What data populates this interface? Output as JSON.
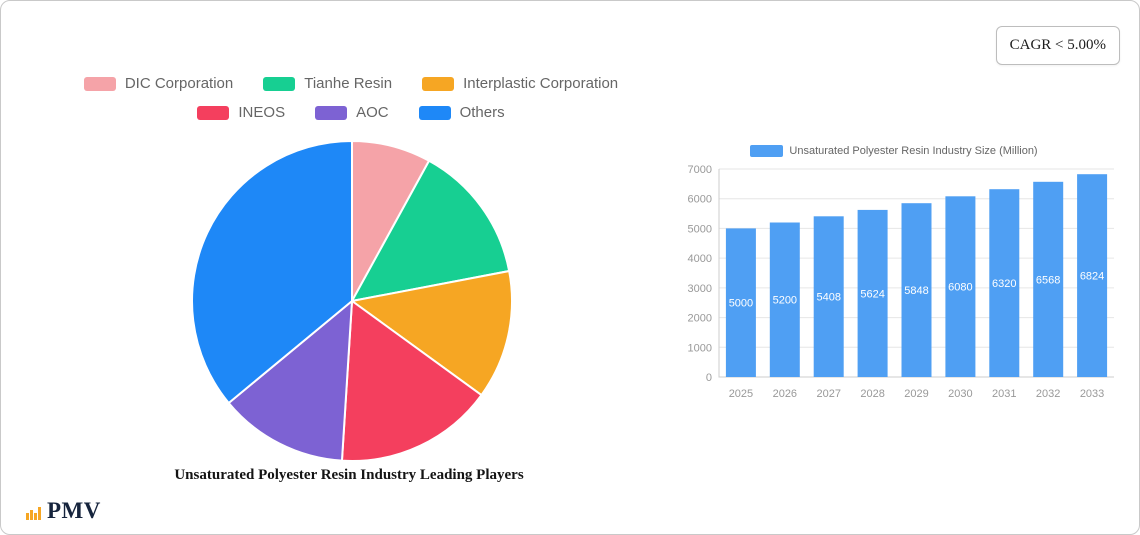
{
  "badge": {
    "text": "CAGR < 5.00%"
  },
  "logo": {
    "text": "PMV"
  },
  "chart_data": [
    {
      "type": "pie",
      "title": "Unsaturated Polyester Resin Industry Leading Players",
      "legend_position": "top",
      "labels": [
        "DIC Corporation",
        "Tianhe Resin",
        "Interplastic Corporation",
        "INEOS",
        "AOC",
        "Others"
      ],
      "values": [
        8,
        14,
        13,
        16,
        13,
        36
      ],
      "colors": [
        "#f5a3a8",
        "#17cf92",
        "#f6a623",
        "#f43f5e",
        "#7d62d3",
        "#1e88f7"
      ]
    },
    {
      "type": "bar",
      "title": "Unsaturated Polyester Resin Industry Size (Million)",
      "categories": [
        "2025",
        "2026",
        "2027",
        "2028",
        "2029",
        "2030",
        "2031",
        "2032",
        "2033"
      ],
      "values": [
        5000,
        5200,
        5408,
        5624,
        5848,
        6080,
        6320,
        6568,
        6824
      ],
      "xlabel": "",
      "ylabel": "",
      "ylim": [
        0,
        7000
      ],
      "yticks": [
        0,
        1000,
        2000,
        3000,
        4000,
        5000,
        6000,
        7000
      ],
      "grid": true,
      "legend_position": "top",
      "bar_color": "#4f9ff3"
    }
  ]
}
